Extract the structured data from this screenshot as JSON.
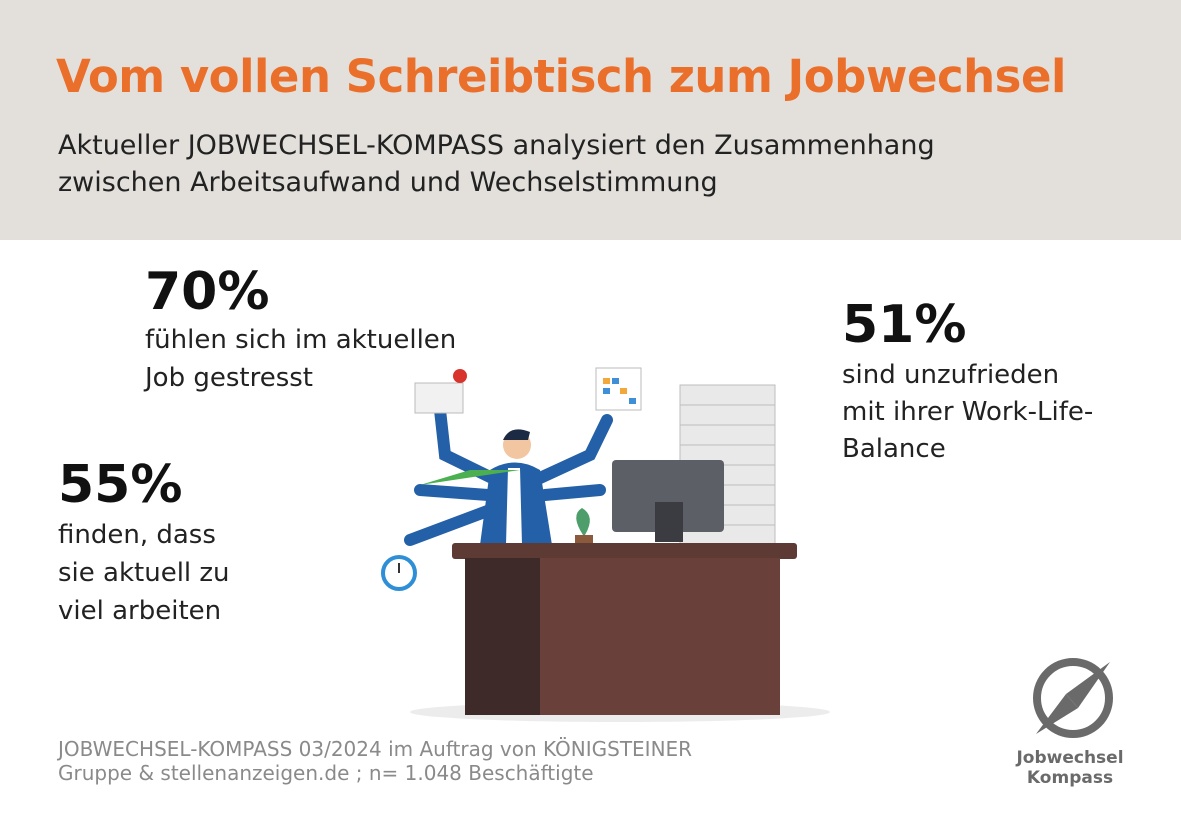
{
  "header": {
    "title": "Vom vollen Schreibtisch zum Jobwechsel",
    "subtitle_lines": [
      "Aktueller JOBWECHSEL-KOMPASS analysiert den Zusammenhang",
      "zwischen Arbeitsaufwand und Wechselstimmung"
    ]
  },
  "stats": [
    {
      "value": "70%",
      "text_lines": [
        "fühlen sich im aktuellen",
        "Job gestresst"
      ]
    },
    {
      "value": "55%",
      "text_lines": [
        "finden, dass",
        "sie aktuell zu",
        "viel arbeiten"
      ]
    },
    {
      "value": "51%",
      "text_lines": [
        "sind unzufrieden",
        "mit ihrer Work-Life-",
        "Balance"
      ]
    }
  ],
  "source_lines": [
    "JOBWECHSEL-KOMPASS 03/2024 im Auftrag von KÖNIGSTEINER",
    "Gruppe & stellenanzeigen.de ; n= 1.048 Beschäftigte"
  ],
  "logo": {
    "lines": [
      "Jobwechsel",
      "Kompass"
    ]
  }
}
